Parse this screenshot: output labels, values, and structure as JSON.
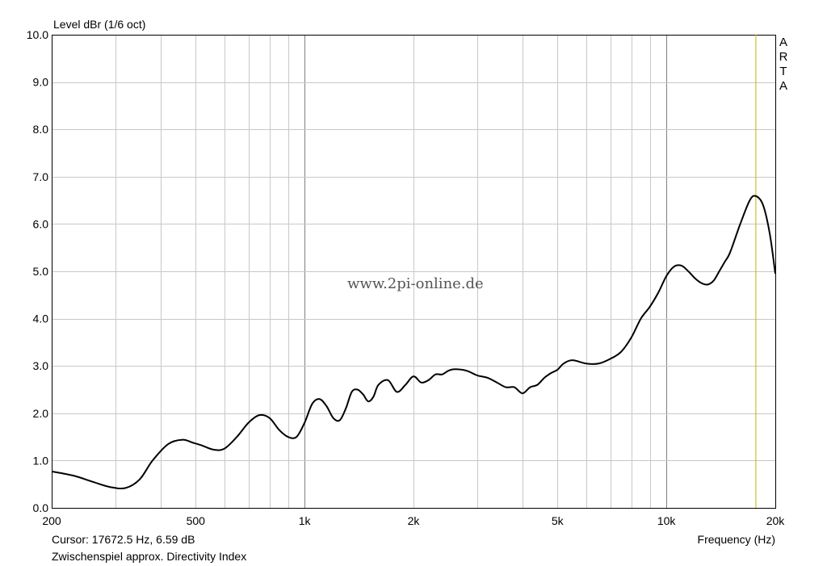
{
  "header": {
    "ylabel": "Level dBr (1/6 oct)",
    "brand_letters": [
      "A",
      "R",
      "T",
      "A"
    ]
  },
  "footer": {
    "cursor": "Cursor: 17672.5 Hz, 6.59 dB",
    "note": "Zwischenspiel approx. Directivity Index",
    "xlabel": "Frequency (Hz)"
  },
  "watermark": "www.2pi-online.de",
  "chart_data": {
    "type": "line",
    "title": "",
    "xlabel": "Frequency (Hz)",
    "ylabel": "Level dBr (1/6 oct)",
    "xscale": "log",
    "xlim": [
      200,
      20000
    ],
    "ylim": [
      0,
      10
    ],
    "grid": true,
    "x_ticks": [
      {
        "v": 200,
        "label": "200"
      },
      {
        "v": 500,
        "label": "500"
      },
      {
        "v": 1000,
        "label": "1k"
      },
      {
        "v": 2000,
        "label": "2k"
      },
      {
        "v": 5000,
        "label": "5k"
      },
      {
        "v": 10000,
        "label": "10k"
      },
      {
        "v": 20000,
        "label": "20k"
      }
    ],
    "y_ticks": [
      {
        "v": 0,
        "label": "0.0"
      },
      {
        "v": 1,
        "label": "1.0"
      },
      {
        "v": 2,
        "label": "2.0"
      },
      {
        "v": 3,
        "label": "3.0"
      },
      {
        "v": 4,
        "label": "4.0"
      },
      {
        "v": 5,
        "label": "5.0"
      },
      {
        "v": 6,
        "label": "6.0"
      },
      {
        "v": 7,
        "label": "7.0"
      },
      {
        "v": 8,
        "label": "8.0"
      },
      {
        "v": 9,
        "label": "9.0"
      },
      {
        "v": 10,
        "label": "10.0"
      }
    ],
    "cursor": {
      "x": 17672.5,
      "y": 6.59,
      "color": "#c8b400"
    },
    "series": [
      {
        "color": "#000000",
        "x": [
          200,
          230,
          260,
          290,
          320,
          350,
          380,
          420,
          460,
          490,
          520,
          560,
          600,
          650,
          700,
          750,
          800,
          850,
          900,
          950,
          1000,
          1050,
          1100,
          1150,
          1200,
          1250,
          1300,
          1350,
          1400,
          1450,
          1500,
          1550,
          1600,
          1700,
          1800,
          1900,
          2000,
          2100,
          2200,
          2300,
          2400,
          2500,
          2600,
          2800,
          3000,
          3200,
          3400,
          3600,
          3800,
          4000,
          4200,
          4400,
          4600,
          4800,
          5000,
          5200,
          5500,
          6000,
          6500,
          7000,
          7500,
          8000,
          8500,
          9000,
          9500,
          10000,
          10500,
          11000,
          11500,
          12000,
          12500,
          13000,
          13500,
          14000,
          14500,
          15000,
          16000,
          17000,
          17672.5,
          18500,
          19300,
          20000
        ],
        "y": [
          0.77,
          0.68,
          0.55,
          0.44,
          0.42,
          0.6,
          1.0,
          1.35,
          1.44,
          1.38,
          1.32,
          1.23,
          1.25,
          1.5,
          1.8,
          1.96,
          1.9,
          1.65,
          1.5,
          1.5,
          1.8,
          2.2,
          2.3,
          2.15,
          1.9,
          1.85,
          2.1,
          2.45,
          2.5,
          2.4,
          2.25,
          2.35,
          2.6,
          2.7,
          2.45,
          2.6,
          2.78,
          2.65,
          2.7,
          2.82,
          2.82,
          2.9,
          2.93,
          2.9,
          2.8,
          2.75,
          2.65,
          2.55,
          2.55,
          2.42,
          2.55,
          2.6,
          2.75,
          2.85,
          2.92,
          3.05,
          3.12,
          3.05,
          3.05,
          3.15,
          3.3,
          3.6,
          4.0,
          4.25,
          4.55,
          4.9,
          5.1,
          5.12,
          5.0,
          4.85,
          4.75,
          4.72,
          4.8,
          5.0,
          5.2,
          5.4,
          6.0,
          6.5,
          6.59,
          6.4,
          5.8,
          4.95
        ]
      }
    ]
  }
}
